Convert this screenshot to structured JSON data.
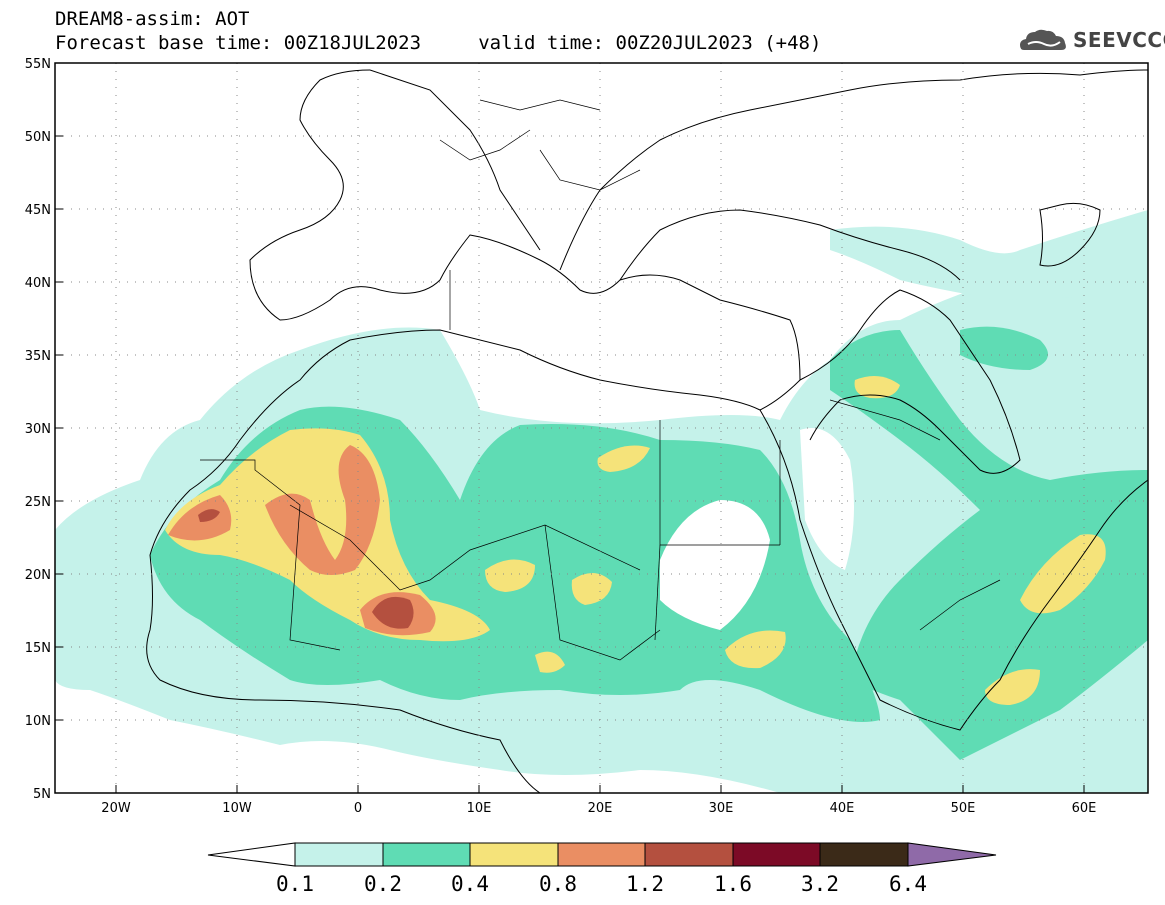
{
  "header": {
    "title": "DREAM8-assim: AOT",
    "subtitle": "Forecast base time: 00Z18JUL2023     valid time: 00Z20JUL2023 (+48)",
    "logo_text": "SEEVCCC"
  },
  "map": {
    "lat_labels": [
      "55N",
      "50N",
      "45N",
      "40N",
      "35N",
      "30N",
      "25N",
      "20N",
      "15N",
      "10N",
      "5N"
    ],
    "lon_labels": [
      "20W",
      "10W",
      "0",
      "10E",
      "20E",
      "30E",
      "40E",
      "50E",
      "60E"
    ],
    "lon_range": [
      -25,
      65
    ],
    "lat_range": [
      5,
      55
    ],
    "grid": "dotted"
  },
  "colorbar": {
    "levels": [
      "0.1",
      "0.2",
      "0.4",
      "0.8",
      "1.2",
      "1.6",
      "3.2",
      "6.4"
    ],
    "colors": [
      "#ffffff",
      "#c5f2ea",
      "#5fdcb4",
      "#f5e37a",
      "#ea8e63",
      "#b4503f",
      "#7c0a26",
      "#3b2a18",
      "#8f6aa8"
    ]
  },
  "legend_colors": {
    "very_low": "#c5f2ea",
    "low": "#5fdcb4",
    "medium": "#f5e37a",
    "high": "#ea8e63",
    "very_high": "#b4503f",
    "extreme": "#7c0a26"
  }
}
